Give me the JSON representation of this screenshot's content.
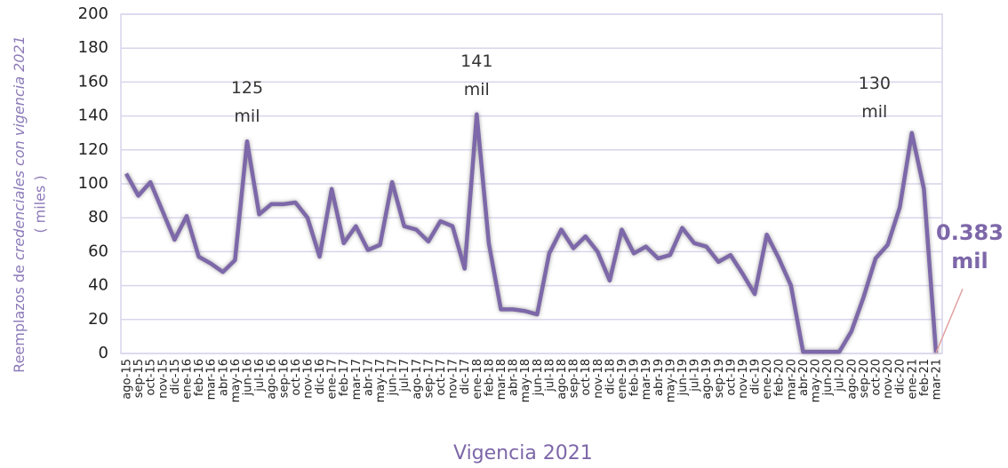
{
  "chart_data": {
    "type": "line",
    "ylabel_parts": [
      "Reemplazos de ",
      "credenciales con vigencia 2021",
      "( miles )"
    ],
    "categories": [
      "ago-15",
      "sep-15",
      "oct-15",
      "nov-15",
      "dic-15",
      "ene-16",
      "feb-16",
      "mar-16",
      "abr-16",
      "may-16",
      "jun-16",
      "jul-16",
      "ago-16",
      "sep-16",
      "oct-16",
      "nov-16",
      "dic-16",
      "ene-17",
      "feb-17",
      "mar-17",
      "abr-17",
      "may-17",
      "jun-17",
      "jul-17",
      "ago-17",
      "sep-17",
      "oct-17",
      "nov-17",
      "dic-17",
      "ene-18",
      "feb-18",
      "mar-18",
      "abr-18",
      "may-18",
      "jun-18",
      "jul-18",
      "ago-18",
      "sep-18",
      "oct-18",
      "nov-18",
      "dic-18",
      "ene-19",
      "feb-19",
      "mar-19",
      "abr-19",
      "may-19",
      "jun-19",
      "jul-19",
      "ago-19",
      "sep-19",
      "oct-19",
      "nov-19",
      "dic-19",
      "ene-20",
      "feb-20",
      "mar-20",
      "abr-20",
      "may-20",
      "jun-20",
      "jul-20",
      "ago-20",
      "sep-20",
      "oct-20",
      "nov-20",
      "dic-20",
      "ene-21",
      "feb-21",
      "mar-21"
    ],
    "series": [
      {
        "name": "Vigencia 2021",
        "color": "#7d67a9",
        "values": [
          106,
          93,
          101,
          84,
          67,
          81,
          57,
          53,
          48,
          55,
          125,
          82,
          88,
          88,
          89,
          80,
          57,
          97,
          65,
          75,
          61,
          64,
          101,
          75,
          73,
          66,
          78,
          75,
          50,
          141,
          65,
          26,
          26,
          25,
          23,
          59,
          73,
          62,
          69,
          60,
          43,
          73,
          59,
          63,
          56,
          58,
          74,
          65,
          63,
          54,
          58,
          47,
          35,
          70,
          56,
          40,
          1,
          1,
          1,
          1,
          13,
          33,
          56,
          64,
          86,
          130,
          97,
          0.383
        ],
        "value_labels": [
          null,
          null,
          null,
          null,
          null,
          null,
          null,
          null,
          null,
          null,
          "125 mil",
          null,
          null,
          null,
          null,
          null,
          null,
          null,
          null,
          null,
          null,
          null,
          null,
          null,
          null,
          null,
          null,
          null,
          null,
          "141 mil",
          null,
          null,
          null,
          null,
          null,
          null,
          null,
          null,
          null,
          null,
          null,
          null,
          null,
          null,
          null,
          null,
          null,
          null,
          null,
          null,
          null,
          null,
          null,
          null,
          null,
          null,
          null,
          null,
          null,
          null,
          null,
          null,
          null,
          null,
          null,
          "130 mil",
          null,
          "0.383 mil"
        ]
      }
    ],
    "ylim": [
      0,
      200
    ],
    "yticks": [
      0,
      20,
      40,
      60,
      80,
      100,
      120,
      140,
      160,
      180,
      200
    ],
    "grid": true,
    "legend": "bottom"
  }
}
